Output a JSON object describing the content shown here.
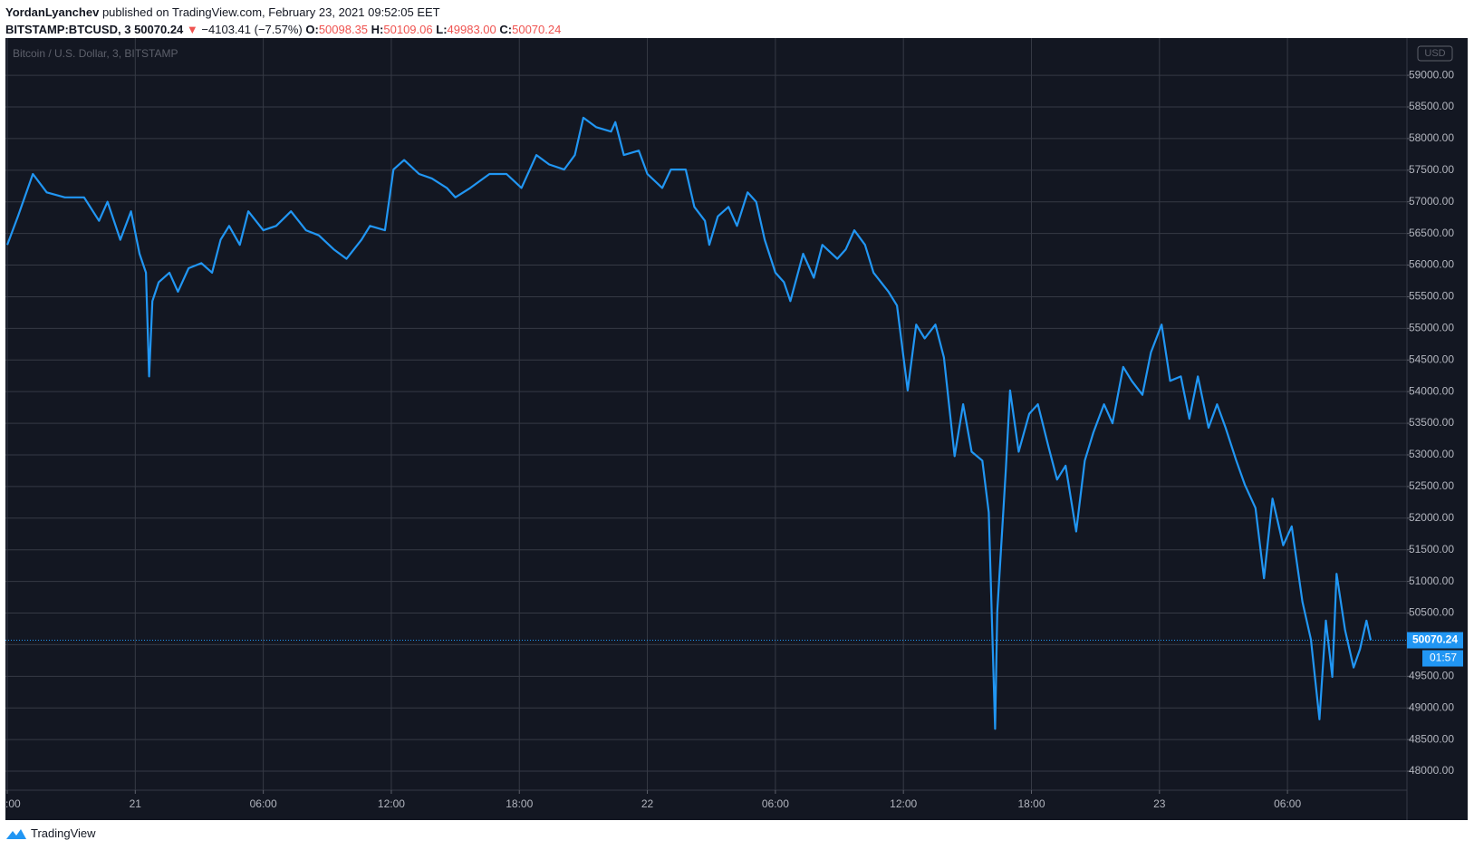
{
  "header": {
    "author": "YordanLyanchev",
    "published": "published on TradingView.com, February 23, 2021 09:52:05 EET",
    "symbol": "BITSTAMP:BTCUSD, 3",
    "price": "50070.24",
    "arrow": "▼",
    "change": "−4103.41 (−7.57%)",
    "o_label": "O:",
    "open": "50098.35",
    "h_label": "H:",
    "high": "50109.06",
    "l_label": "L:",
    "low": "49983.00",
    "c_label": "C:",
    "close": "50070.24"
  },
  "footer": {
    "brand": "TradingView"
  },
  "chart_data": {
    "type": "line",
    "legend": "Bitcoin / U.S. Dollar, 3, BITSTAMP",
    "currency": "USD",
    "countdown": "01:57",
    "last_price": 50070.24,
    "background": "#131722",
    "grid": true,
    "xlim": [
      0,
      65.6
    ],
    "ylim": [
      47700,
      59560
    ],
    "xticks": [
      {
        "value": 0,
        "label": ":00"
      },
      {
        "value": 6,
        "label": "21"
      },
      {
        "value": 12,
        "label": "06:00"
      },
      {
        "value": 18,
        "label": "12:00"
      },
      {
        "value": 24,
        "label": "18:00"
      },
      {
        "value": 30,
        "label": "22"
      },
      {
        "value": 36,
        "label": "06:00"
      },
      {
        "value": 42,
        "label": "12:00"
      },
      {
        "value": 48,
        "label": "18:00"
      },
      {
        "value": 54,
        "label": "23"
      },
      {
        "value": 60,
        "label": "06:00"
      }
    ],
    "yticks": [
      {
        "value": 48000,
        "label": "48000.00"
      },
      {
        "value": 48500,
        "label": "48500.00"
      },
      {
        "value": 49000,
        "label": "49000.00"
      },
      {
        "value": 49500,
        "label": "49500.00"
      },
      {
        "value": 50000,
        "label": "50000.00"
      },
      {
        "value": 50500,
        "label": "50500.00"
      },
      {
        "value": 51000,
        "label": "51000.00"
      },
      {
        "value": 51500,
        "label": "51500.00"
      },
      {
        "value": 52000,
        "label": "52000.00"
      },
      {
        "value": 52500,
        "label": "52500.00"
      },
      {
        "value": 53000,
        "label": "53000.00"
      },
      {
        "value": 53500,
        "label": "53500.00"
      },
      {
        "value": 54000,
        "label": "54000.00"
      },
      {
        "value": 54500,
        "label": "54500.00"
      },
      {
        "value": 55000,
        "label": "55000.00"
      },
      {
        "value": 55500,
        "label": "55500.00"
      },
      {
        "value": 56000,
        "label": "56000.00"
      },
      {
        "value": 56500,
        "label": "56500.00"
      },
      {
        "value": 57000,
        "label": "57000.00"
      },
      {
        "value": 57500,
        "label": "57500.00"
      },
      {
        "value": 58000,
        "label": "58000.00"
      },
      {
        "value": 58500,
        "label": "58500.00"
      },
      {
        "value": 59000,
        "label": "59000.00"
      }
    ],
    "series": [
      {
        "name": "BTCUSD",
        "color": "#2196f3",
        "x": [
          0,
          0.5,
          1.2,
          1.85,
          2.7,
          3.6,
          4.3,
          4.7,
          5.3,
          5.8,
          6.2,
          6.5,
          6.65,
          6.8,
          7.1,
          7.6,
          8.0,
          8.5,
          9.1,
          9.6,
          10.0,
          10.4,
          10.9,
          11.3,
          12.0,
          12.6,
          13.3,
          14.0,
          14.6,
          15.3,
          15.9,
          16.6,
          17.0,
          17.7,
          18.1,
          18.6,
          19.3,
          19.9,
          20.6,
          21.0,
          21.7,
          22.6,
          23.4,
          24.1,
          24.8,
          25.4,
          26.1,
          26.6,
          27.0,
          27.6,
          28.3,
          28.5,
          28.9,
          29.6,
          30.0,
          30.7,
          31.1,
          31.8,
          32.2,
          32.7,
          32.9,
          33.3,
          33.8,
          34.2,
          34.7,
          35.1,
          35.5,
          36.0,
          36.4,
          36.7,
          37.3,
          37.8,
          38.2,
          38.9,
          39.3,
          39.7,
          40.2,
          40.6,
          41.3,
          41.7,
          42.2,
          42.6,
          43.0,
          43.5,
          43.9,
          44.4,
          44.8,
          45.2,
          45.7,
          46.0,
          46.3,
          46.4,
          46.8,
          47.0,
          47.4,
          47.9,
          48.3,
          48.8,
          49.2,
          49.6,
          50.1,
          50.5,
          50.9,
          51.4,
          51.8,
          52.3,
          52.7,
          53.2,
          53.6,
          54.1,
          54.5,
          55.0,
          55.4,
          55.8,
          56.3,
          56.7,
          57.1,
          57.6,
          58.0,
          58.5,
          58.9,
          59.3,
          59.8,
          60.2,
          60.7,
          61.1,
          61.5,
          61.8,
          62.1,
          62.3,
          62.7,
          63.1,
          63.4,
          63.7,
          63.9
        ],
        "values": [
          56320,
          56770,
          57440,
          57150,
          57070,
          57070,
          56700,
          57000,
          56400,
          56850,
          56180,
          55880,
          54240,
          55430,
          55730,
          55880,
          55580,
          55950,
          56030,
          55880,
          56400,
          56620,
          56320,
          56850,
          56550,
          56620,
          56850,
          56550,
          56470,
          56250,
          56100,
          56400,
          56620,
          56550,
          57510,
          57660,
          57440,
          57370,
          57220,
          57070,
          57220,
          57440,
          57440,
          57220,
          57740,
          57590,
          57510,
          57740,
          58330,
          58180,
          58110,
          58260,
          57740,
          57810,
          57440,
          57220,
          57510,
          57510,
          56920,
          56700,
          56320,
          56770,
          56920,
          56620,
          57150,
          57000,
          56400,
          55880,
          55730,
          55430,
          56180,
          55800,
          56320,
          56100,
          56250,
          56550,
          56320,
          55880,
          55580,
          55360,
          54020,
          55060,
          54840,
          55060,
          54540,
          52980,
          53800,
          53050,
          52910,
          52090,
          48670,
          50530,
          52760,
          54020,
          53050,
          53650,
          53800,
          53130,
          52610,
          52830,
          51790,
          52910,
          53350,
          53800,
          53500,
          54390,
          54170,
          53950,
          54620,
          55060,
          54170,
          54240,
          53570,
          54240,
          53430,
          53800,
          53430,
          52910,
          52530,
          52160,
          51050,
          52310,
          51570,
          51870,
          50680,
          50080,
          48820,
          50380,
          49490,
          51120,
          50230,
          49640,
          49930,
          50380,
          50070.24
        ]
      }
    ]
  }
}
